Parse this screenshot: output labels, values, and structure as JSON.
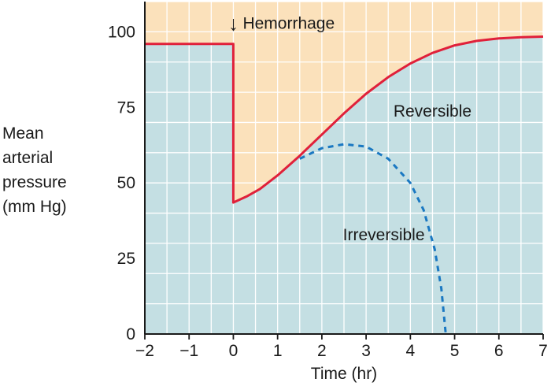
{
  "chart_data": {
    "type": "line",
    "title": "",
    "xlabel": "Time (hr)",
    "ylabel": [
      "Mean",
      "arterial",
      "pressure",
      "(mm Hg)"
    ],
    "xlim": [
      -2,
      7
    ],
    "ylim": [
      0,
      110
    ],
    "xticks": [
      -2,
      -1,
      0,
      1,
      2,
      3,
      4,
      5,
      6,
      7
    ],
    "xtick_labels": [
      "−2",
      "−1",
      "0",
      "1",
      "2",
      "3",
      "4",
      "5",
      "6",
      "7"
    ],
    "yticks": [
      0,
      25,
      50,
      75,
      100
    ],
    "grid": true,
    "series": [
      {
        "name": "Reversible",
        "style": "solid",
        "color": "#e0203a",
        "points": [
          [
            -2,
            96
          ],
          [
            0,
            96
          ],
          [
            0,
            43.5
          ],
          [
            0.3,
            45.5
          ],
          [
            0.6,
            48
          ],
          [
            1.0,
            52.5
          ],
          [
            1.5,
            59
          ],
          [
            2.0,
            66
          ],
          [
            2.5,
            73
          ],
          [
            3.0,
            79.5
          ],
          [
            3.5,
            85
          ],
          [
            4.0,
            89.5
          ],
          [
            4.5,
            93
          ],
          [
            5.0,
            95.5
          ],
          [
            5.5,
            97
          ],
          [
            6.0,
            97.8
          ],
          [
            6.5,
            98.2
          ],
          [
            7.0,
            98.4
          ]
        ]
      },
      {
        "name": "Irreversible",
        "style": "dashed",
        "color": "#1a78c2",
        "points": [
          [
            1.5,
            58
          ],
          [
            2.0,
            61.5
          ],
          [
            2.5,
            62.8
          ],
          [
            3.0,
            62
          ],
          [
            3.5,
            58
          ],
          [
            4.0,
            50
          ],
          [
            4.3,
            41
          ],
          [
            4.55,
            28
          ],
          [
            4.7,
            15
          ],
          [
            4.8,
            0
          ]
        ]
      }
    ],
    "annotations": [
      {
        "text": "Hemorrhage",
        "arrow": "↓",
        "x": 0,
        "y": 101
      },
      {
        "text": "Reversible",
        "x": 4.5,
        "y": 72
      },
      {
        "text": "Irreversible",
        "x": 3.4,
        "y": 31
      }
    ],
    "colors": {
      "upper_region": "#fbe1bb",
      "lower_region": "#c4dfe3",
      "grid": "#ffffff",
      "axis": "#1a1a1a"
    }
  }
}
